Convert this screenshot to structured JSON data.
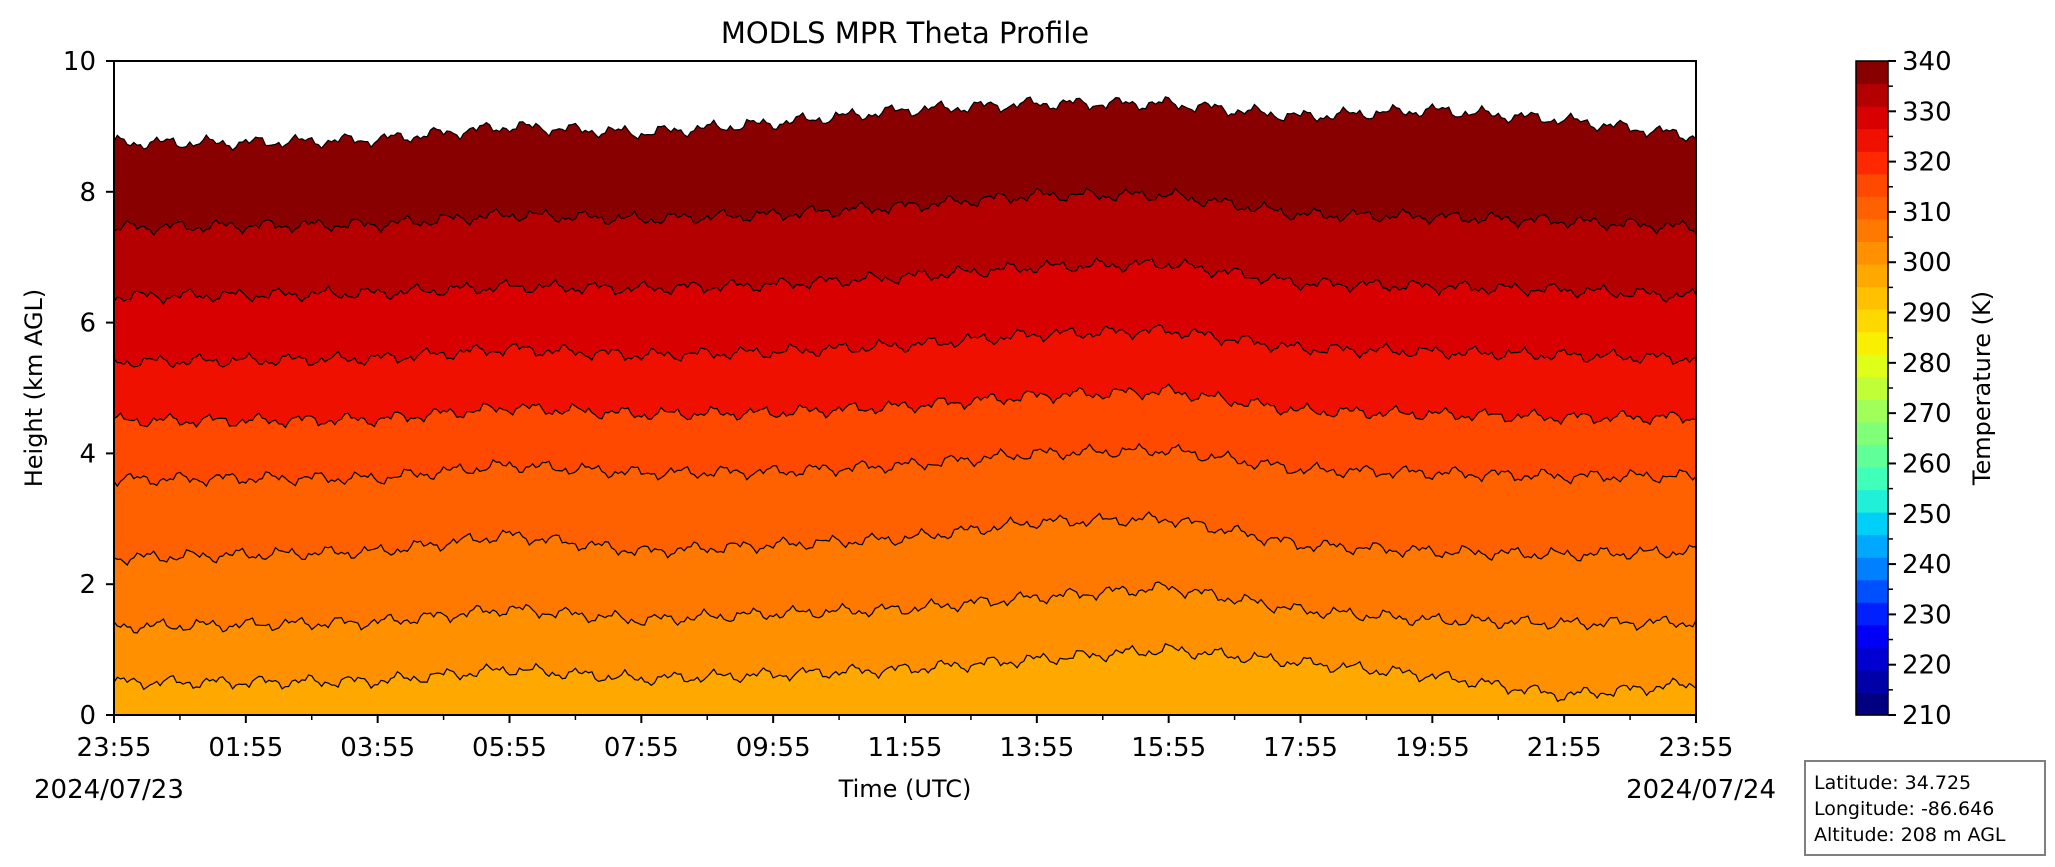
{
  "chart_data": {
    "type": "heatmap",
    "title": "MODLS MPR Theta Profile",
    "xlabel": "Time (UTC)",
    "ylabel": "Height (km AGL)",
    "x_ticks": [
      "23:55",
      "01:55",
      "03:55",
      "05:55",
      "07:55",
      "09:55",
      "11:55",
      "13:55",
      "15:55",
      "17:55",
      "19:55",
      "21:55",
      "23:55"
    ],
    "x_hours": [
      0,
      2,
      4,
      6,
      8,
      10,
      12,
      14,
      16,
      18,
      20,
      22,
      24
    ],
    "start_date": "2024/07/23",
    "end_date": "2024/07/24",
    "ylim": [
      0,
      10
    ],
    "y_ticks": [
      "0",
      "2",
      "4",
      "6",
      "8",
      "10"
    ],
    "y_values": [
      0,
      2,
      4,
      6,
      8,
      10
    ],
    "colorbar": {
      "label": "Temperature (K)",
      "min": 210,
      "max": 340,
      "ticks": [
        "210",
        "220",
        "230",
        "240",
        "250",
        "260",
        "270",
        "280",
        "290",
        "300",
        "310",
        "320",
        "330",
        "340"
      ],
      "tick_values": [
        210,
        220,
        230,
        240,
        250,
        260,
        270,
        280,
        290,
        300,
        310,
        320,
        330,
        340
      ],
      "colors": [
        "#000080",
        "#0000a8",
        "#0000d0",
        "#0000f8",
        "#0020ff",
        "#0050ff",
        "#0080ff",
        "#00a8ff",
        "#00d0f8",
        "#20f0d8",
        "#40ffb8",
        "#60ff98",
        "#80ff78",
        "#a0ff58",
        "#c0ff38",
        "#e0ff18",
        "#f8f000",
        "#ffd800",
        "#ffc000",
        "#ffa800",
        "#ff9000",
        "#ff7800",
        "#ff6000",
        "#ff4800",
        "#ff2800",
        "#f01000",
        "#d80000",
        "#b40000",
        "#880000"
      ]
    },
    "contour_levels_k": [
      300,
      305,
      310,
      315,
      320,
      325,
      330,
      335,
      340
    ],
    "contour_heights_km": [
      {
        "level": 300,
        "height": [
          0.5,
          0.5,
          0.52,
          0.7,
          0.55,
          0.62,
          0.7,
          0.85,
          1.0,
          0.8,
          0.6,
          0.3,
          0.48
        ]
      },
      {
        "level": 305,
        "height": [
          1.35,
          1.38,
          1.42,
          1.62,
          1.45,
          1.55,
          1.62,
          1.8,
          1.95,
          1.6,
          1.45,
          1.4,
          1.42
        ]
      },
      {
        "level": 310,
        "height": [
          2.4,
          2.45,
          2.5,
          2.75,
          2.5,
          2.6,
          2.7,
          2.95,
          3.0,
          2.6,
          2.5,
          2.45,
          2.5
        ]
      },
      {
        "level": 315,
        "height": [
          3.6,
          3.62,
          3.62,
          3.82,
          3.7,
          3.72,
          3.82,
          4.0,
          4.05,
          3.75,
          3.7,
          3.65,
          3.65
        ]
      },
      {
        "level": 320,
        "height": [
          4.5,
          4.5,
          4.52,
          4.7,
          4.6,
          4.62,
          4.72,
          4.88,
          4.95,
          4.65,
          4.6,
          4.55,
          4.55
        ]
      },
      {
        "level": 325,
        "height": [
          5.4,
          5.42,
          5.45,
          5.6,
          5.5,
          5.55,
          5.65,
          5.82,
          5.88,
          5.6,
          5.55,
          5.5,
          5.45
        ]
      },
      {
        "level": 330,
        "height": [
          6.4,
          6.42,
          6.45,
          6.55,
          6.52,
          6.58,
          6.7,
          6.85,
          6.9,
          6.6,
          6.55,
          6.5,
          6.4
        ]
      },
      {
        "level": 335,
        "height": [
          7.45,
          7.48,
          7.5,
          7.65,
          7.58,
          7.65,
          7.78,
          7.95,
          7.95,
          7.65,
          7.62,
          7.55,
          7.45
        ]
      },
      {
        "level": 340,
        "height": [
          8.75,
          8.75,
          8.8,
          9.0,
          8.9,
          9.05,
          9.25,
          9.35,
          9.35,
          9.15,
          9.25,
          9.1,
          8.85
        ]
      }
    ]
  },
  "station_info": {
    "latitude": "Latitude: 34.725",
    "longitude": "Longitude: -86.646",
    "altitude": "Altitude: 208 m AGL"
  }
}
